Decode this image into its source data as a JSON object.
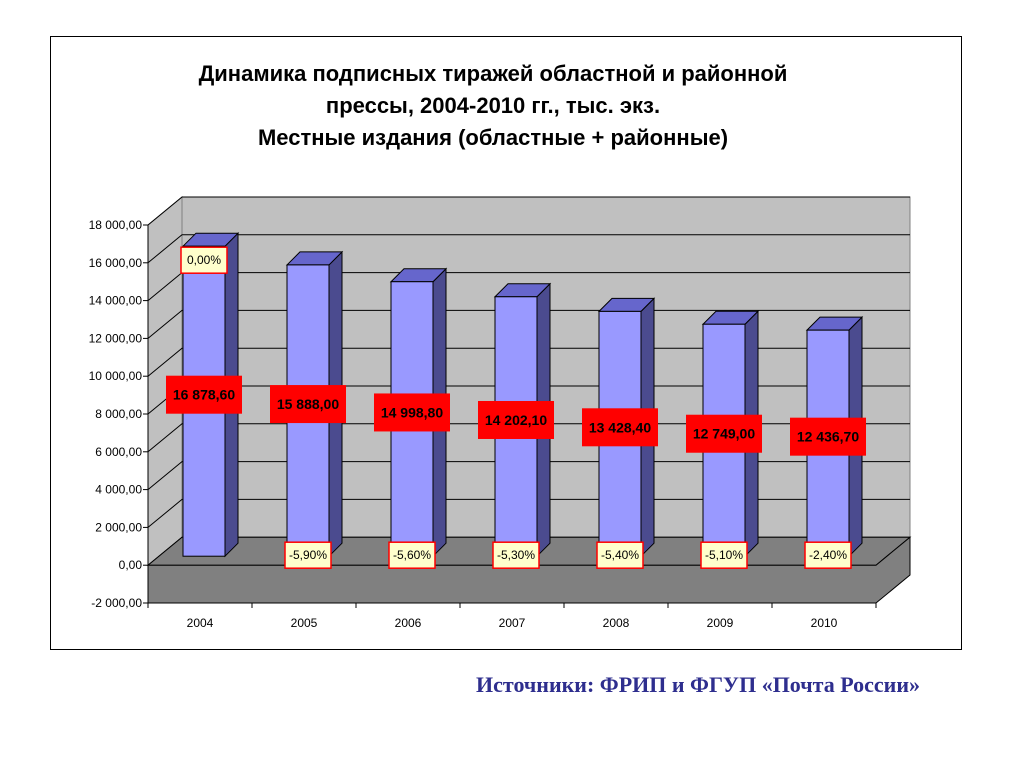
{
  "chart_data": {
    "type": "bar",
    "title_lines": [
      "Динамика подписных тиражей областной и районной",
      "прессы, 2004-2010 гг., тыс. экз.",
      "Местные издания (областные + районные)"
    ],
    "categories": [
      "2004",
      "2005",
      "2006",
      "2007",
      "2008",
      "2009",
      "2010"
    ],
    "values": [
      16878.6,
      15888.0,
      14998.8,
      14202.1,
      13428.4,
      12749.0,
      12436.7
    ],
    "value_labels": [
      "16 878,60",
      "15 888,00",
      "14 998,80",
      "14 202,10",
      "13 428,40",
      "12 749,00",
      "12 436,70"
    ],
    "change_labels": [
      "0,00%",
      "-5,90%",
      "-5,60%",
      "-5,30%",
      "-5,40%",
      "-5,10%",
      "-2,40%"
    ],
    "y_ticks": [
      18000,
      16000,
      14000,
      12000,
      10000,
      8000,
      6000,
      4000,
      2000,
      0,
      -2000
    ],
    "y_tick_labels": [
      "18 000,00",
      "16 000,00",
      "14 000,00",
      "12 000,00",
      "10 000,00",
      "8 000,00",
      "6 000,00",
      "4 000,00",
      "2 000,00",
      "0,00",
      "-2 000,00"
    ],
    "ylim": [
      -2000,
      18000
    ],
    "grid": true,
    "colors": {
      "bar_front": "#9999FF",
      "bar_side": "#4B4B8F",
      "bar_top": "#6666CC",
      "wall": "#C0C0C0",
      "floor": "#808080",
      "value_label_bg": "#FF0000",
      "change_label_bg": "#FFFFCC",
      "change_label_border": "#FF0000"
    }
  },
  "source": "Источники: ФРИП и ФГУП «Почта России»"
}
